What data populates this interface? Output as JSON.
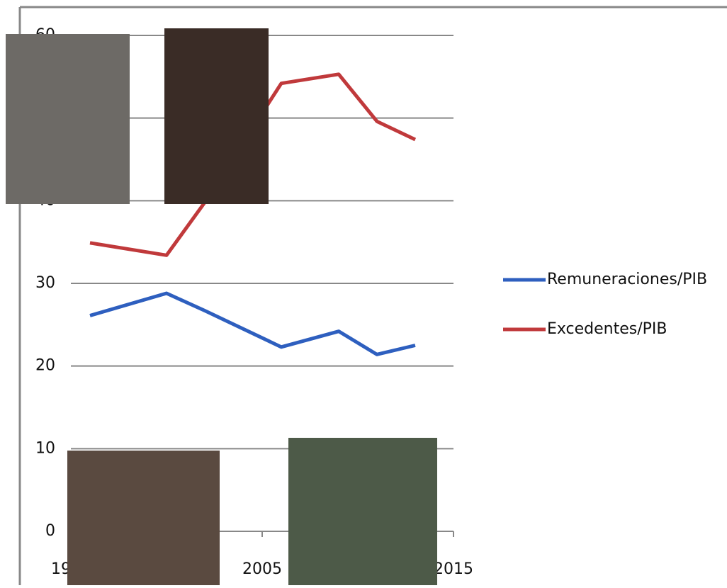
{
  "chart_data": {
    "type": "line",
    "x": [
      1996,
      2000,
      2002,
      2006,
      2009,
      2011,
      2013
    ],
    "series": [
      {
        "name": "Remuneraciones/PIB",
        "color": "#2e5fbf",
        "values": [
          26.1,
          28.8,
          26.7,
          22.3,
          24.2,
          21.4,
          22.5
        ]
      },
      {
        "name": "Excedentes/PIB",
        "color": "#c0393b",
        "values": [
          34.9,
          33.4,
          39.8,
          54.2,
          55.3,
          49.6,
          47.4
        ]
      }
    ],
    "xlim": [
      1995,
      2015
    ],
    "xticks": [
      1995,
      2005,
      2015
    ],
    "ylim": [
      0,
      60
    ],
    "yticks": [
      0,
      10,
      20,
      30,
      40,
      50,
      60
    ],
    "grid": true,
    "legend": "right"
  }
}
